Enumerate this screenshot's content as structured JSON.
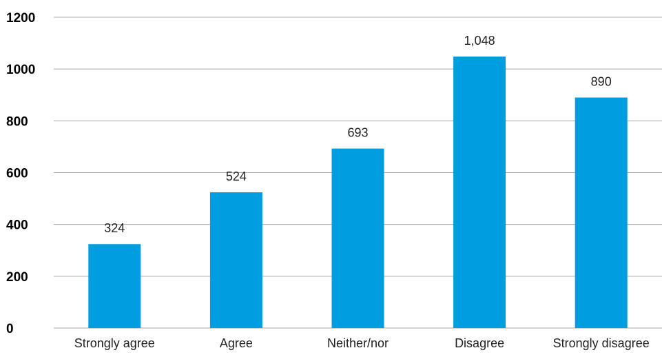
{
  "chart_data": {
    "type": "bar",
    "title": "",
    "xlabel": "",
    "ylabel": "",
    "categories": [
      "Strongly agree",
      "Agree",
      "Neither/nor",
      "Disagree",
      "Strongly disagree"
    ],
    "values": [
      324,
      524,
      693,
      1048,
      890
    ],
    "data_labels": [
      "324",
      "524",
      "693",
      "1,048",
      "890"
    ],
    "ylim": [
      0,
      1200
    ],
    "yticks": [
      0,
      200,
      400,
      600,
      800,
      1000,
      1200
    ],
    "ytick_labels": [
      "0",
      "200",
      "400",
      "600",
      "800",
      "1000",
      "1200"
    ],
    "grid": true,
    "legend": "none",
    "colors": {
      "bar": "#009de0",
      "grid": "#a8a8a8"
    }
  }
}
